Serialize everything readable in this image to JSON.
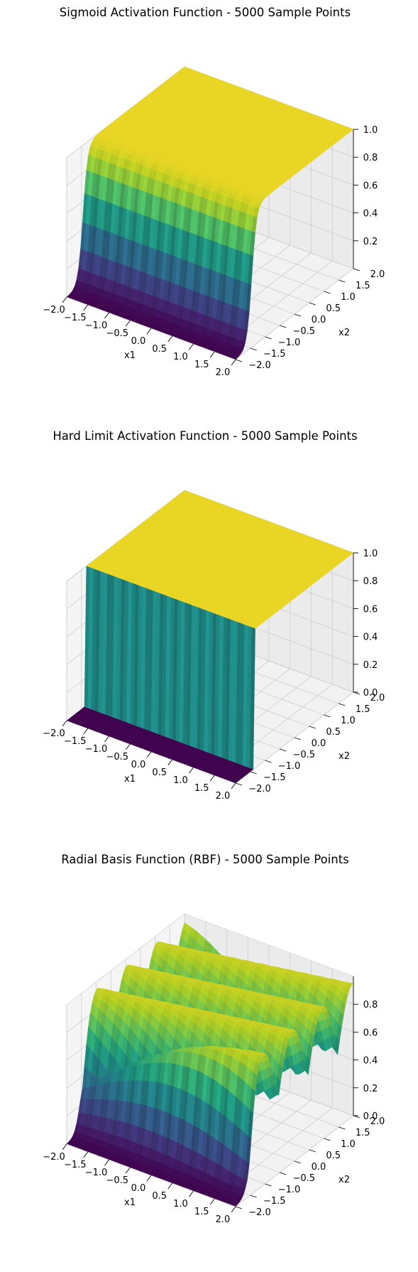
{
  "chart_data": [
    {
      "type": "surface3d",
      "title": "Sigmoid Activation Function - 5000 Sample Points",
      "function": "sigmoid",
      "xlabel": "x1",
      "ylabel": "x2",
      "zlabel": "",
      "xlim": [
        -2,
        2
      ],
      "ylim": [
        -2,
        2
      ],
      "zlim": [
        0,
        1
      ],
      "xticks": [
        "−2.0",
        "−1.5",
        "−1.0",
        "−0.5",
        "0.0",
        "0.5",
        "1.0",
        "1.5",
        "2.0"
      ],
      "yticks": [
        "−2.0",
        "−1.5",
        "−1.0",
        "−0.5",
        "0.0",
        "0.5",
        "1.0",
        "1.5",
        "2.0"
      ],
      "zticks": [
        "0.2",
        "0.4",
        "0.6",
        "0.8",
        "1.0"
      ],
      "colormap": "viridis"
    },
    {
      "type": "surface3d",
      "title": "Hard Limit Activation Function - 5000 Sample Points",
      "function": "hardlim",
      "xlabel": "x1",
      "ylabel": "x2",
      "zlabel": "",
      "xlim": [
        -2,
        2
      ],
      "ylim": [
        -2,
        2
      ],
      "zlim": [
        0,
        1
      ],
      "xticks": [
        "−2.0",
        "−1.5",
        "−1.0",
        "−0.5",
        "0.0",
        "0.5",
        "1.0",
        "1.5",
        "2.0"
      ],
      "yticks": [
        "−2.0",
        "−1.5",
        "−1.0",
        "−0.5",
        "0.0",
        "0.5",
        "1.0",
        "1.5",
        "2.0"
      ],
      "zticks": [
        "0.0",
        "0.2",
        "0.4",
        "0.6",
        "0.8",
        "1.0"
      ],
      "colormap": "viridis"
    },
    {
      "type": "surface3d",
      "title": "Radial Basis Function (RBF) - 5000 Sample Points",
      "function": "rbf",
      "xlabel": "x1",
      "ylabel": "x2",
      "zlabel": "",
      "xlim": [
        -2,
        2
      ],
      "ylim": [
        -2,
        2
      ],
      "zlim": [
        0,
        1
      ],
      "xticks": [
        "−2.0",
        "−1.5",
        "−1.0",
        "−0.5",
        "0.0",
        "0.5",
        "1.0",
        "1.5",
        "2.0"
      ],
      "yticks": [
        "−2.0",
        "−1.5",
        "−1.0",
        "−0.5",
        "0.0",
        "0.5",
        "1.0",
        "1.5",
        "2.0"
      ],
      "zticks": [
        "0.0",
        "0.2",
        "0.4",
        "0.6",
        "0.8"
      ],
      "colormap": "viridis"
    }
  ]
}
